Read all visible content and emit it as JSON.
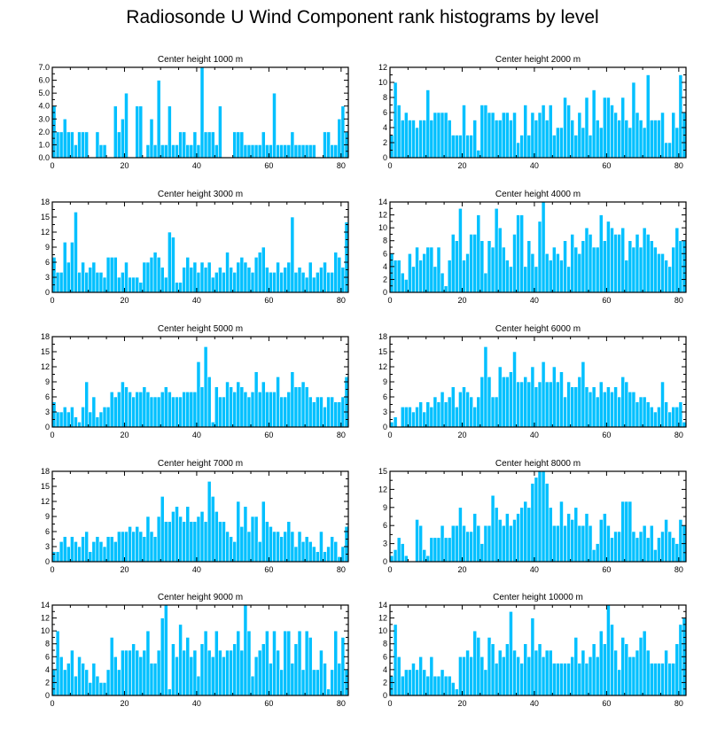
{
  "title": "Radiosonde U Wind Component rank histograms by level",
  "colors": {
    "bar": "#00c0ff",
    "bar_edge": "#ffffff",
    "axis": "#000000"
  },
  "chart_data": [
    {
      "type": "bar",
      "title": "Center height 1000 m",
      "xlim": [
        0,
        82
      ],
      "ylim": [
        0,
        7.0
      ],
      "xticks": [
        0,
        20,
        40,
        60,
        80
      ],
      "yticks": [
        "0.0",
        "1.0",
        "2.0",
        "3.0",
        "4.0",
        "5.0",
        "6.0",
        "7.0"
      ],
      "ytick_values": [
        0,
        1,
        2,
        3,
        4,
        5,
        6,
        7
      ],
      "values": [
        4,
        2,
        2,
        3,
        2,
        2,
        1,
        2,
        2,
        2,
        0,
        0,
        2,
        1,
        1,
        0,
        0,
        4,
        2,
        3,
        5,
        0,
        0,
        4,
        4,
        0,
        1,
        3,
        1,
        6,
        1,
        1,
        4,
        1,
        1,
        2,
        2,
        1,
        1,
        2,
        1,
        7,
        2,
        2,
        2,
        1,
        4,
        0,
        0,
        0,
        2,
        2,
        2,
        1,
        1,
        1,
        1,
        1,
        2,
        1,
        1,
        5,
        1,
        1,
        1,
        1,
        2,
        1,
        1,
        1,
        1,
        1,
        1,
        0,
        0,
        2,
        2,
        1,
        1,
        3,
        4,
        2
      ]
    },
    {
      "type": "bar",
      "title": "Center height 2000 m",
      "xlim": [
        0,
        82
      ],
      "ylim": [
        0,
        12
      ],
      "xticks": [
        0,
        20,
        40,
        60,
        80
      ],
      "yticks": [
        "0",
        "2",
        "4",
        "6",
        "8",
        "10",
        "12"
      ],
      "ytick_values": [
        0,
        2,
        4,
        6,
        8,
        10,
        12
      ],
      "values": [
        3,
        10,
        7,
        5,
        6,
        5,
        5,
        4,
        5,
        5,
        9,
        5,
        6,
        6,
        6,
        6,
        5,
        3,
        3,
        3,
        7,
        3,
        3,
        5,
        1,
        7,
        7,
        6,
        6,
        5,
        5,
        6,
        6,
        5,
        6,
        2,
        3,
        7,
        3,
        6,
        5,
        6,
        7,
        5,
        7,
        3,
        4,
        4,
        8,
        7,
        5,
        3,
        6,
        4,
        8,
        3,
        9,
        5,
        4,
        8,
        8,
        7,
        6,
        5,
        8,
        5,
        4,
        10,
        6,
        5,
        4,
        11,
        5,
        5,
        5,
        6,
        2,
        2,
        6,
        4,
        11,
        6
      ]
    },
    {
      "type": "bar",
      "title": "Center height 3000 m",
      "xlim": [
        0,
        82
      ],
      "ylim": [
        0,
        18
      ],
      "xticks": [
        0,
        20,
        40,
        60,
        80
      ],
      "yticks": [
        "0",
        "3",
        "6",
        "9",
        "12",
        "15",
        "18"
      ],
      "ytick_values": [
        0,
        3,
        6,
        9,
        12,
        15,
        18
      ],
      "values": [
        7,
        4,
        4,
        10,
        6,
        10,
        16,
        4,
        6,
        4,
        5,
        6,
        4,
        4,
        3,
        7,
        7,
        7,
        3,
        4,
        6,
        3,
        3,
        3,
        2,
        6,
        6,
        7,
        8,
        7,
        5,
        3,
        12,
        11,
        2,
        2,
        5,
        7,
        5,
        6,
        4,
        6,
        5,
        6,
        3,
        4,
        5,
        4,
        8,
        5,
        4,
        6,
        7,
        6,
        5,
        4,
        7,
        8,
        9,
        5,
        4,
        4,
        6,
        4,
        5,
        6,
        15,
        4,
        5,
        4,
        3,
        6,
        3,
        4,
        5,
        6,
        4,
        4,
        8,
        7,
        5,
        14
      ]
    },
    {
      "type": "bar",
      "title": "Center height 4000 m",
      "xlim": [
        0,
        82
      ],
      "ylim": [
        0,
        14
      ],
      "xticks": [
        0,
        20,
        40,
        60,
        80
      ],
      "yticks": [
        "0",
        "2",
        "4",
        "6",
        "8",
        "10",
        "12",
        "14"
      ],
      "ytick_values": [
        0,
        2,
        4,
        6,
        8,
        10,
        12,
        14
      ],
      "values": [
        6,
        5,
        5,
        3,
        2,
        6,
        4,
        7,
        5,
        6,
        7,
        7,
        4,
        7,
        3,
        1,
        5,
        9,
        8,
        13,
        5,
        6,
        9,
        9,
        12,
        8,
        3,
        8,
        7,
        13,
        10,
        7,
        5,
        4,
        9,
        12,
        12,
        4,
        8,
        6,
        4,
        11,
        14,
        6,
        5,
        7,
        6,
        5,
        8,
        4,
        9,
        7,
        6,
        8,
        10,
        9,
        7,
        7,
        12,
        8,
        11,
        10,
        9,
        9,
        10,
        5,
        8,
        7,
        9,
        7,
        10,
        9,
        8,
        7,
        6,
        6,
        5,
        4,
        7,
        10,
        8,
        8
      ]
    },
    {
      "type": "bar",
      "title": "Center height 5000 m",
      "xlim": [
        0,
        82
      ],
      "ylim": [
        0,
        18
      ],
      "xticks": [
        0,
        20,
        40,
        60,
        80
      ],
      "yticks": [
        "0",
        "3",
        "6",
        "9",
        "12",
        "15",
        "18"
      ],
      "ytick_values": [
        0,
        3,
        6,
        9,
        12,
        15,
        18
      ],
      "values": [
        5,
        3,
        3,
        4,
        3,
        4,
        2,
        1,
        4,
        9,
        3,
        6,
        2,
        3,
        4,
        4,
        7,
        6,
        7,
        9,
        8,
        7,
        6,
        7,
        7,
        8,
        7,
        6,
        6,
        6,
        7,
        8,
        7,
        6,
        6,
        6,
        7,
        7,
        7,
        7,
        13,
        8,
        16,
        10,
        1,
        8,
        6,
        6,
        9,
        8,
        7,
        9,
        8,
        7,
        6,
        7,
        11,
        7,
        9,
        7,
        7,
        7,
        10,
        6,
        6,
        7,
        11,
        8,
        8,
        9,
        8,
        6,
        5,
        6,
        6,
        4,
        6,
        6,
        5,
        5,
        6,
        10
      ]
    },
    {
      "type": "bar",
      "title": "Center height 6000 m",
      "xlim": [
        0,
        82
      ],
      "ylim": [
        0,
        18
      ],
      "xticks": [
        0,
        20,
        40,
        60,
        80
      ],
      "yticks": [
        "0",
        "3",
        "6",
        "9",
        "12",
        "15",
        "18"
      ],
      "ytick_values": [
        0,
        3,
        6,
        9,
        12,
        15,
        18
      ],
      "values": [
        1,
        2,
        0,
        4,
        4,
        4,
        3,
        4,
        5,
        3,
        5,
        4,
        6,
        5,
        7,
        5,
        6,
        8,
        4,
        7,
        8,
        7,
        6,
        4,
        6,
        10,
        16,
        10,
        6,
        6,
        12,
        10,
        10,
        11,
        15,
        9,
        9,
        10,
        9,
        12,
        8,
        9,
        13,
        9,
        9,
        12,
        9,
        11,
        6,
        9,
        8,
        8,
        10,
        13,
        8,
        7,
        8,
        6,
        9,
        7,
        8,
        7,
        8,
        6,
        10,
        9,
        7,
        7,
        5,
        6,
        6,
        5,
        4,
        3,
        4,
        9,
        5,
        3,
        4,
        4,
        5,
        1
      ]
    },
    {
      "type": "bar",
      "title": "Center height 7000 m",
      "xlim": [
        0,
        82
      ],
      "ylim": [
        0,
        18
      ],
      "xticks": [
        0,
        20,
        40,
        60,
        80
      ],
      "yticks": [
        "0",
        "3",
        "6",
        "9",
        "12",
        "15",
        "18"
      ],
      "ytick_values": [
        0,
        3,
        6,
        9,
        12,
        15,
        18
      ],
      "values": [
        2,
        2,
        4,
        5,
        3,
        5,
        4,
        3,
        5,
        6,
        2,
        4,
        5,
        4,
        3,
        5,
        5,
        4,
        6,
        6,
        6,
        7,
        6,
        7,
        6,
        5,
        9,
        6,
        5,
        9,
        13,
        8,
        8,
        10,
        11,
        9,
        8,
        11,
        8,
        8,
        9,
        10,
        8,
        16,
        13,
        10,
        8,
        8,
        6,
        5,
        4,
        12,
        7,
        11,
        6,
        9,
        9,
        4,
        12,
        8,
        7,
        6,
        6,
        5,
        6,
        8,
        6,
        3,
        6,
        4,
        5,
        4,
        3,
        2,
        6,
        2,
        3,
        5,
        4,
        1,
        3,
        7
      ]
    },
    {
      "type": "bar",
      "title": "Center height 8000 m",
      "xlim": [
        0,
        82
      ],
      "ylim": [
        0,
        15
      ],
      "xticks": [
        0,
        20,
        40,
        60,
        80
      ],
      "yticks": [
        "0",
        "3",
        "6",
        "9",
        "12",
        "15"
      ],
      "ytick_values": [
        0,
        3,
        6,
        9,
        12,
        15
      ],
      "values": [
        1,
        2,
        4,
        3,
        1,
        0,
        0,
        7,
        6,
        2,
        1,
        4,
        4,
        4,
        6,
        4,
        4,
        6,
        6,
        9,
        6,
        5,
        5,
        8,
        6,
        3,
        6,
        6,
        11,
        9,
        7,
        6,
        8,
        6,
        7,
        8,
        9,
        10,
        9,
        13,
        14,
        15,
        15,
        13,
        9,
        6,
        6,
        10,
        6,
        8,
        7,
        9,
        6,
        6,
        8,
        6,
        2,
        3,
        7,
        8,
        6,
        4,
        5,
        5,
        10,
        10,
        10,
        5,
        4,
        5,
        6,
        4,
        6,
        2,
        4,
        5,
        7,
        5,
        4,
        3,
        7,
        6
      ]
    },
    {
      "type": "bar",
      "title": "Center height 9000 m",
      "xlim": [
        0,
        82
      ],
      "ylim": [
        0,
        14
      ],
      "xticks": [
        0,
        20,
        40,
        60,
        80
      ],
      "yticks": [
        "0",
        "2",
        "4",
        "6",
        "8",
        "10",
        "12",
        "14"
      ],
      "ytick_values": [
        0,
        2,
        4,
        6,
        8,
        10,
        12,
        14
      ],
      "values": [
        4,
        10,
        6,
        4,
        5,
        7,
        3,
        6,
        5,
        4,
        2,
        5,
        3,
        2,
        2,
        4,
        9,
        6,
        4,
        7,
        7,
        7,
        8,
        7,
        6,
        7,
        10,
        5,
        5,
        7,
        12,
        14,
        1,
        8,
        6,
        11,
        7,
        9,
        6,
        7,
        3,
        8,
        10,
        7,
        6,
        10,
        7,
        6,
        7,
        7,
        8,
        10,
        7,
        14,
        10,
        3,
        6,
        7,
        8,
        10,
        5,
        10,
        7,
        4,
        10,
        10,
        5,
        8,
        10,
        4,
        10,
        9,
        4,
        4,
        7,
        5,
        1,
        4,
        10,
        5,
        9,
        4
      ]
    },
    {
      "type": "bar",
      "title": "Center height 10000 m",
      "xlim": [
        0,
        82
      ],
      "ylim": [
        0,
        14
      ],
      "xticks": [
        0,
        20,
        40,
        60,
        80
      ],
      "yticks": [
        "0",
        "2",
        "4",
        "6",
        "8",
        "10",
        "12",
        "14"
      ],
      "ytick_values": [
        0,
        2,
        4,
        6,
        8,
        10,
        12,
        14
      ],
      "values": [
        3,
        11,
        6,
        3,
        4,
        4,
        5,
        4,
        6,
        4,
        3,
        6,
        3,
        3,
        4,
        3,
        3,
        2,
        1,
        6,
        6,
        7,
        6,
        10,
        9,
        6,
        4,
        9,
        8,
        5,
        7,
        6,
        8,
        13,
        7,
        6,
        5,
        8,
        6,
        12,
        7,
        8,
        6,
        7,
        7,
        5,
        5,
        5,
        5,
        5,
        6,
        9,
        5,
        7,
        5,
        6,
        8,
        6,
        10,
        8,
        14,
        11,
        7,
        4,
        9,
        8,
        6,
        6,
        7,
        9,
        10,
        7,
        5,
        5,
        5,
        5,
        7,
        5,
        5,
        8,
        11,
        12
      ]
    }
  ]
}
